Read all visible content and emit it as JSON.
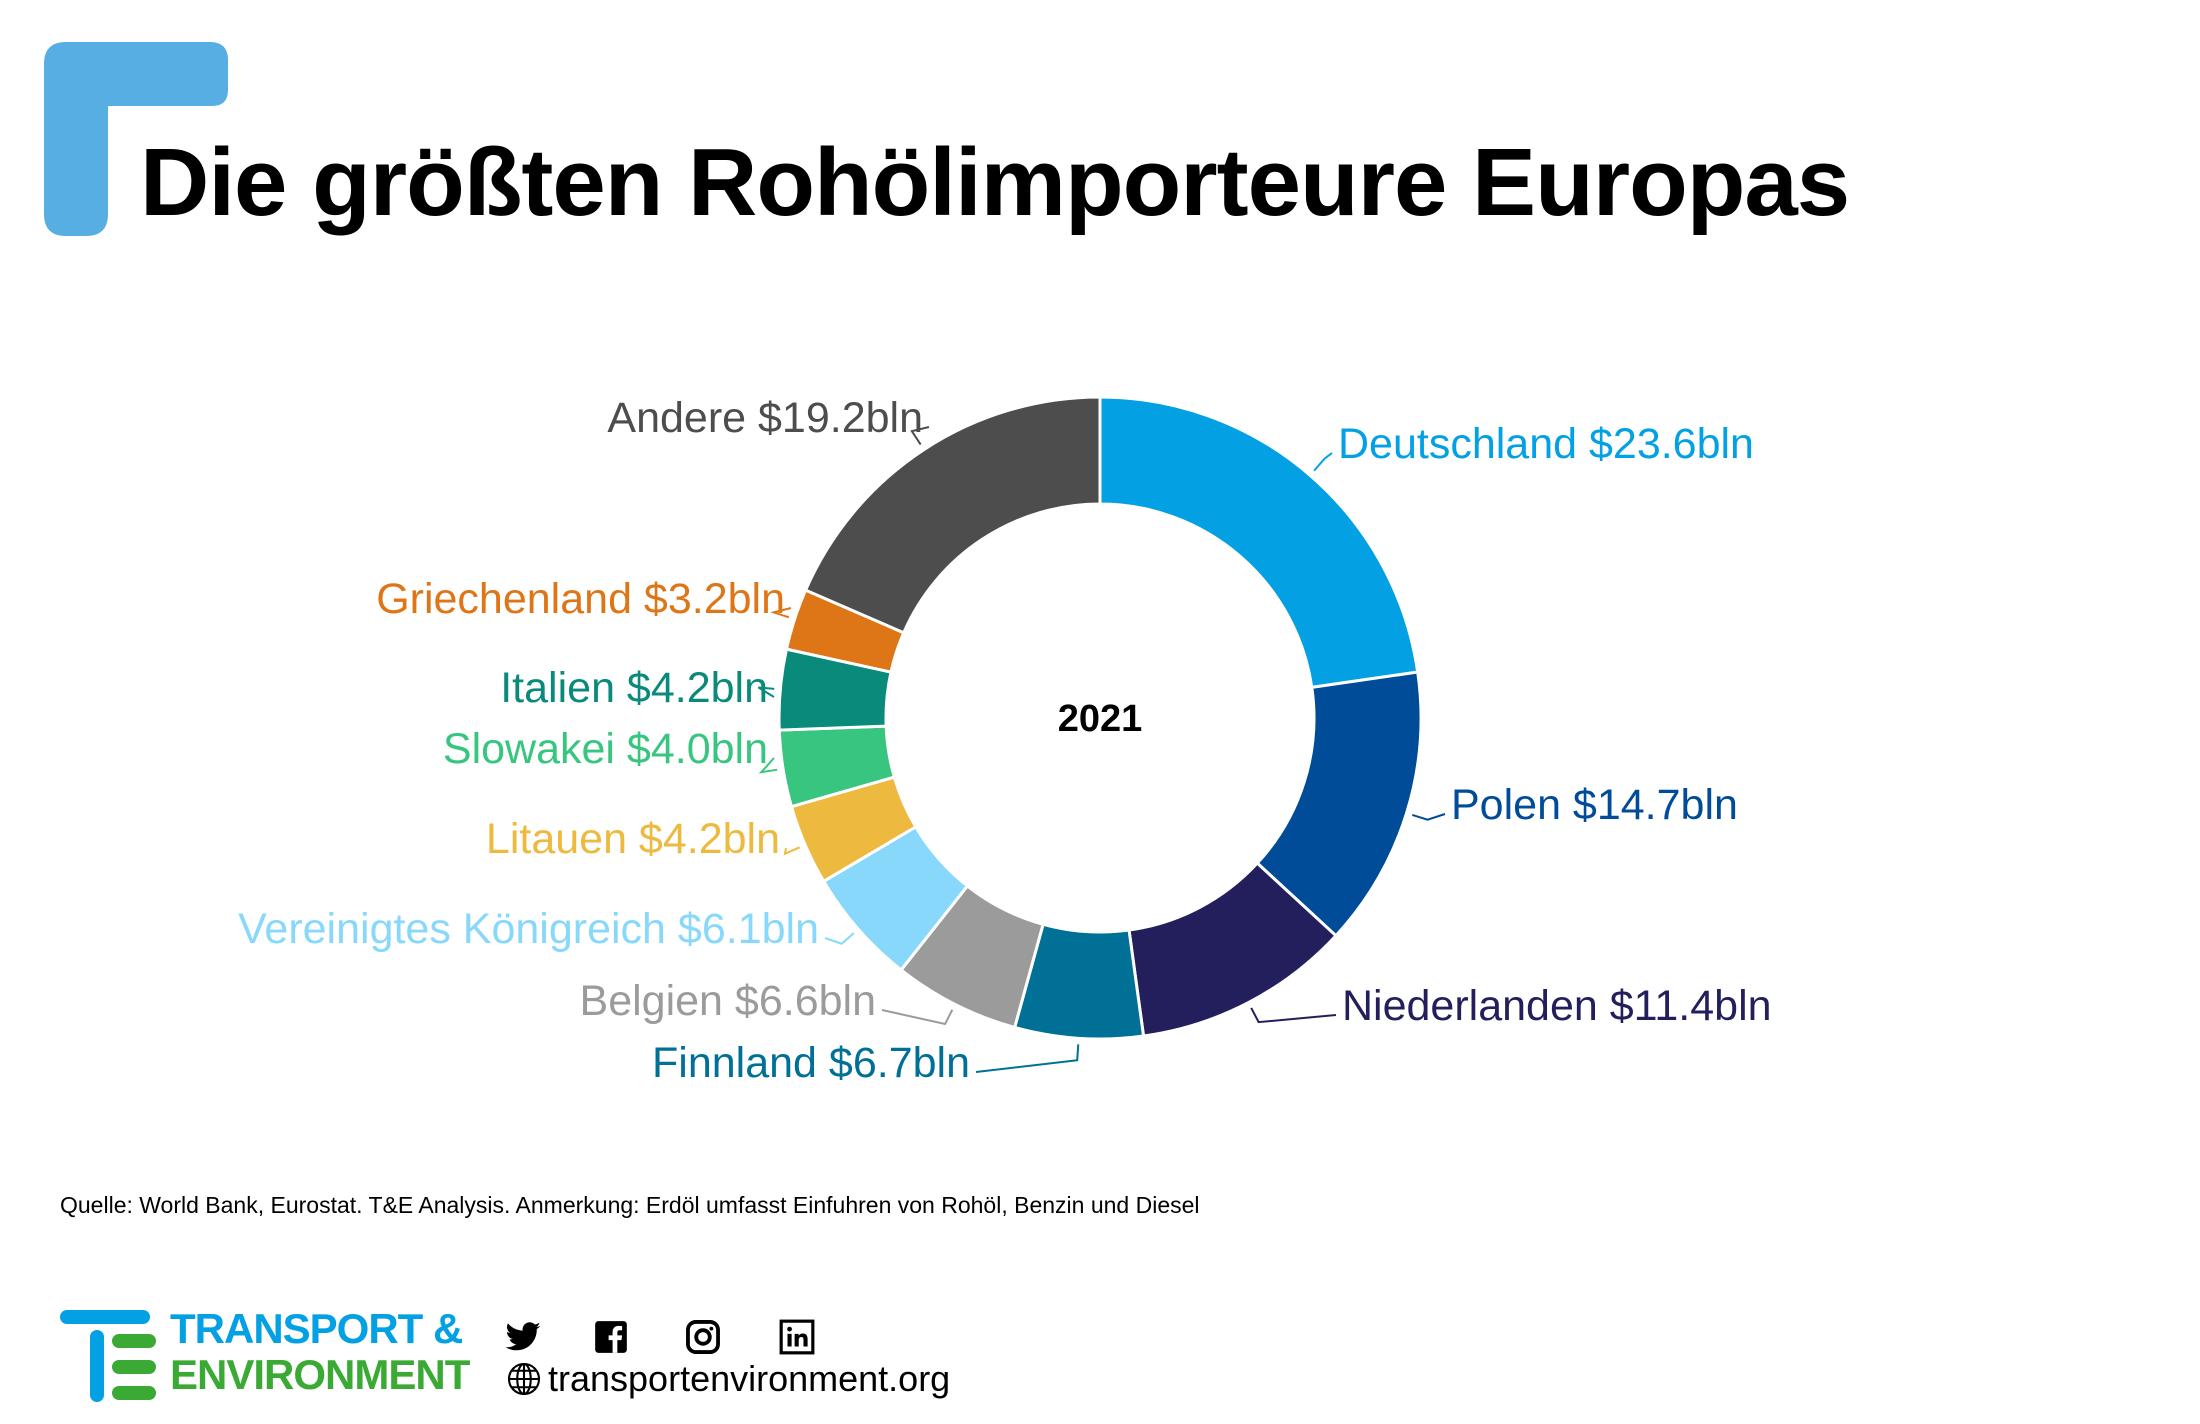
{
  "title": "Die größten Rohölimporteure Europas",
  "chart_data": {
    "type": "pie",
    "variant": "donut",
    "title": "Die größten Rohölimporteure Europas",
    "center_label": "2021",
    "unit": "$ bln",
    "slices": [
      {
        "name": "Deutschland",
        "value": 23.6,
        "label": "Deutschland $23.6bln",
        "color": "#03A1E3"
      },
      {
        "name": "Polen",
        "value": 14.7,
        "label": "Polen $14.7bln",
        "color": "#004C98"
      },
      {
        "name": "Niederlanden",
        "value": 11.4,
        "label": "Niederlanden $11.4bln",
        "color": "#231F5C"
      },
      {
        "name": "Finnland",
        "value": 6.7,
        "label": "Finnland $6.7bln",
        "color": "#007096"
      },
      {
        "name": "Belgien",
        "value": 6.6,
        "label": "Belgien $6.6bln",
        "color": "#9B9B9B"
      },
      {
        "name": "Vereinigtes Königreich",
        "value": 6.1,
        "label": "Vereinigtes Königreich $6.1bln",
        "color": "#87D8FB"
      },
      {
        "name": "Litauen",
        "value": 4.2,
        "label": "Litauen $4.2bln",
        "color": "#EDBA3F"
      },
      {
        "name": "Slowakei",
        "value": 4.0,
        "label": "Slowakei $4.0bln",
        "color": "#37C57F"
      },
      {
        "name": "Italien",
        "value": 4.2,
        "label": "Italien $4.2bln",
        "color": "#0A8A7A"
      },
      {
        "name": "Griechenland",
        "value": 3.2,
        "label": "Griechenland $3.2bln",
        "color": "#DE7618"
      },
      {
        "name": "Andere",
        "value": 19.2,
        "label": "Andere $19.2bln",
        "color": "#4D4D4D"
      }
    ]
  },
  "source": "Quelle: World Bank, Eurostat. T&E Analysis.  Anmerkung: Erdöl umfasst Einfuhren von Rohöl, Benzin und Diesel",
  "footer": {
    "logo_line1": "TRANSPORT &",
    "logo_line2": "ENVIRONMENT",
    "url": "transportenvironment.org",
    "brand_blue": "#03A1E3",
    "brand_green": "#3AAA35"
  }
}
